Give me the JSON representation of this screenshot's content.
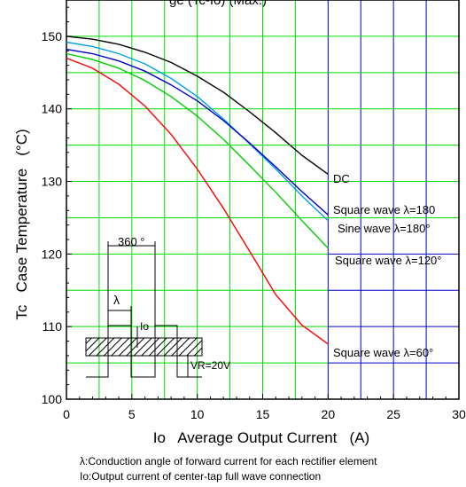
{
  "chart_data": {
    "type": "line",
    "title": "ge (Tc-Io) (Max.)",
    "xlabel": "Io   Average Output Current   (A)",
    "ylabel": "Tc   Case Temperature   (°C)",
    "xlim": [
      0,
      30
    ],
    "ylim": [
      100,
      155
    ],
    "x_ticks": [
      0,
      5,
      10,
      15,
      20,
      25,
      30
    ],
    "y_ticks": [
      100,
      110,
      120,
      130,
      140,
      150
    ],
    "grid": true,
    "series": [
      {
        "name": "DC",
        "color": "#000000",
        "x": [
          0,
          2,
          4,
          6,
          8,
          10,
          12,
          14,
          16,
          18,
          20
        ],
        "y": [
          150,
          149.6,
          148.9,
          147.8,
          146.4,
          144.5,
          142.3,
          139.6,
          136.7,
          133.6,
          131
        ]
      },
      {
        "name": "Square wave λ=180",
        "color": "#00a0e6",
        "x": [
          0,
          2,
          4,
          6,
          8,
          10,
          12,
          14,
          16,
          18,
          20
        ],
        "y": [
          149.2,
          148.6,
          147.6,
          146.2,
          144.2,
          141.7,
          138.6,
          135.2,
          131.7,
          128,
          124.6
        ]
      },
      {
        "name": "Sine wave λ=180°",
        "color": "#0000cc",
        "x": [
          0,
          2,
          4,
          6,
          8,
          10,
          12,
          14,
          16,
          18,
          20
        ],
        "y": [
          148.2,
          147.6,
          146.6,
          145.2,
          143.3,
          141.1,
          138.4,
          135.3,
          132,
          128.6,
          125.4
        ]
      },
      {
        "name": "Square wave λ=120°",
        "color": "#00cc00",
        "x": [
          0,
          2,
          4,
          6,
          8,
          10,
          12,
          14,
          16,
          18,
          20
        ],
        "y": [
          147.6,
          146.8,
          145.6,
          143.9,
          141.7,
          139,
          135.8,
          132.2,
          128.5,
          124.6,
          120.8
        ]
      },
      {
        "name": "Square wave λ=60°",
        "color": "#ff0000",
        "x": [
          0,
          2,
          4,
          6,
          8,
          10,
          12,
          14,
          16,
          18,
          20
        ],
        "y": [
          147,
          145.6,
          143.4,
          140.4,
          136.5,
          131.7,
          126.3,
          120.4,
          114.4,
          110.2,
          107.6
        ]
      }
    ],
    "inset": {
      "period_label": "360 °",
      "conduction_label": "λ",
      "current_label": "Io",
      "voltage_label": "VR=20V"
    }
  },
  "colors": {
    "grid_green": "#00dd00",
    "grid_blue": "#0000cc"
  },
  "notes": [
    "λ:Conduction angle of forward current for each rectifier element",
    "Io:Output current of center-tap full wave connection"
  ]
}
